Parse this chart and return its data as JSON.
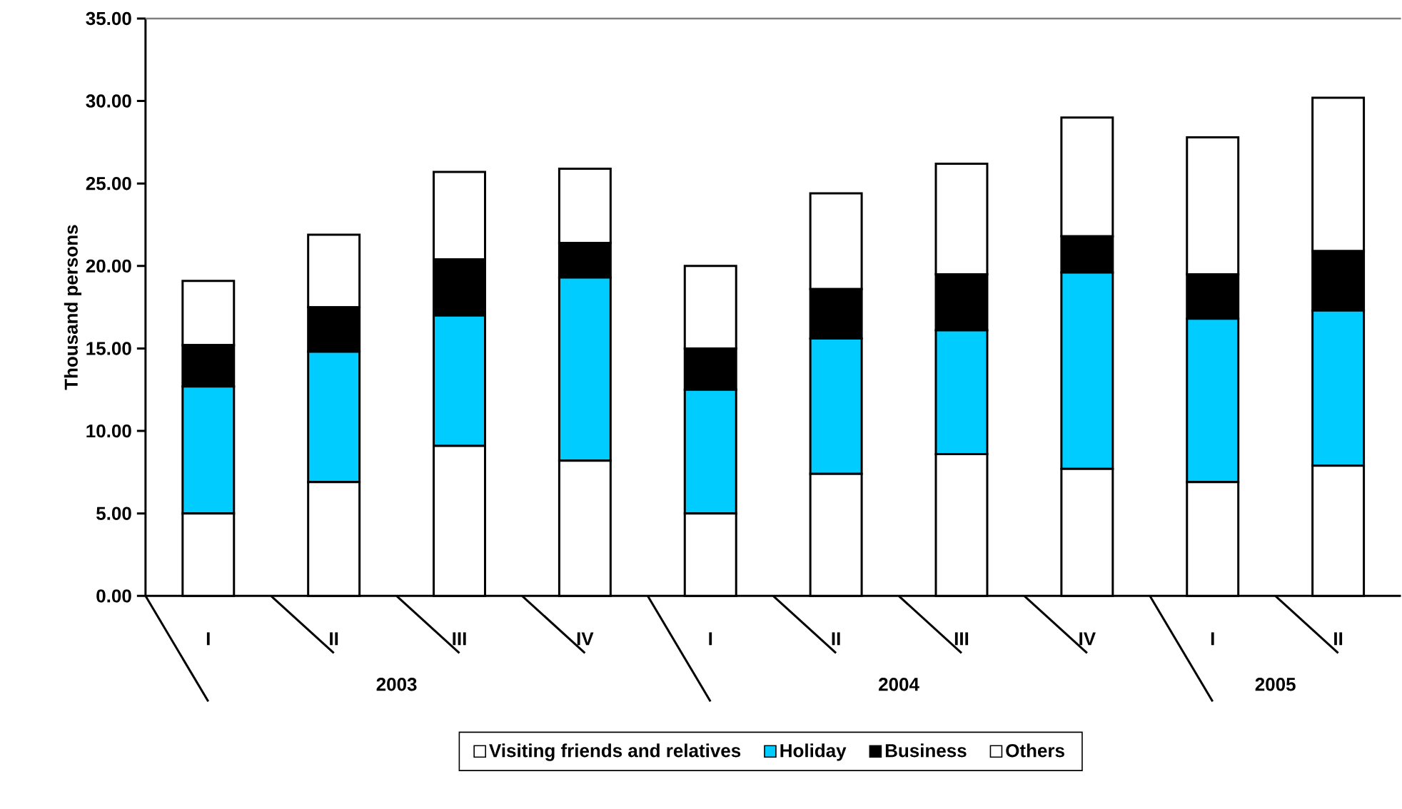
{
  "chart_data": {
    "type": "bar",
    "stacked": true,
    "ylabel": "Thousand persons",
    "categories": [
      "I",
      "II",
      "III",
      "IV",
      "I",
      "II",
      "III",
      "IV",
      "I",
      "II"
    ],
    "series": [
      {
        "name": "Visiting friends and relatives",
        "color": "#ffffff",
        "values": [
          5.0,
          6.9,
          9.1,
          8.2,
          5.0,
          7.4,
          8.6,
          7.7,
          6.9,
          7.9
        ]
      },
      {
        "name": "Holiday",
        "color": "#00ccff",
        "values": [
          7.7,
          7.9,
          7.9,
          11.1,
          7.5,
          8.2,
          7.5,
          11.9,
          9.9,
          9.4
        ]
      },
      {
        "name": "Business",
        "color": "#000000",
        "values": [
          2.5,
          2.7,
          3.4,
          2.1,
          2.5,
          3.0,
          3.4,
          2.2,
          2.7,
          3.6
        ]
      },
      {
        "name": "Others",
        "color": "#ffffff",
        "values": [
          3.9,
          4.4,
          5.3,
          4.5,
          5.0,
          5.8,
          6.7,
          7.2,
          8.3,
          9.3
        ]
      }
    ],
    "ylim": [
      0,
      35
    ],
    "yticks": [
      {
        "value": 0,
        "label": "0.00"
      },
      {
        "value": 5,
        "label": "5.00"
      },
      {
        "value": 10,
        "label": "10.00"
      },
      {
        "value": 15,
        "label": "15.00"
      },
      {
        "value": 20,
        "label": "20.00"
      },
      {
        "value": 25,
        "label": "25.00"
      },
      {
        "value": 30,
        "label": "30.00"
      },
      {
        "value": 35,
        "label": "35.00"
      }
    ],
    "annotations": [
      "2003",
      "2004",
      "2005"
    ],
    "legend": "bottom"
  }
}
